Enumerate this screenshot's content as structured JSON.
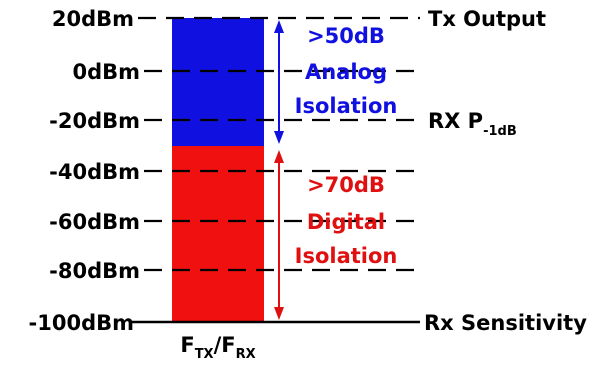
{
  "levels": {
    "l20": "20dBm",
    "l0": "0dBm",
    "lm20": "-20dBm",
    "lm40": "-40dBm",
    "lm60": "-60dBm",
    "lm80": "-80dBm",
    "lm100": "-100dBm"
  },
  "right_labels": {
    "tx_output": "Tx Output",
    "rx_p_main": "RX P",
    "rx_p_sub": "-1dB",
    "rx_sensitivity": "Rx Sensitivity"
  },
  "analog": {
    "line1": ">50dB",
    "line2": "Analog",
    "line3": "Isolation",
    "range_dbm": [
      -30,
      20
    ],
    "color": "#1010e0"
  },
  "digital": {
    "line1": ">70dB",
    "line2": "Digital",
    "line3": "Isolation",
    "range_dbm": [
      -100,
      -30
    ],
    "color": "#e01010"
  },
  "freq": {
    "f1": "F",
    "f1_sub": "TX",
    "sep": "/",
    "f2": "F",
    "f2_sub": "RX"
  }
}
